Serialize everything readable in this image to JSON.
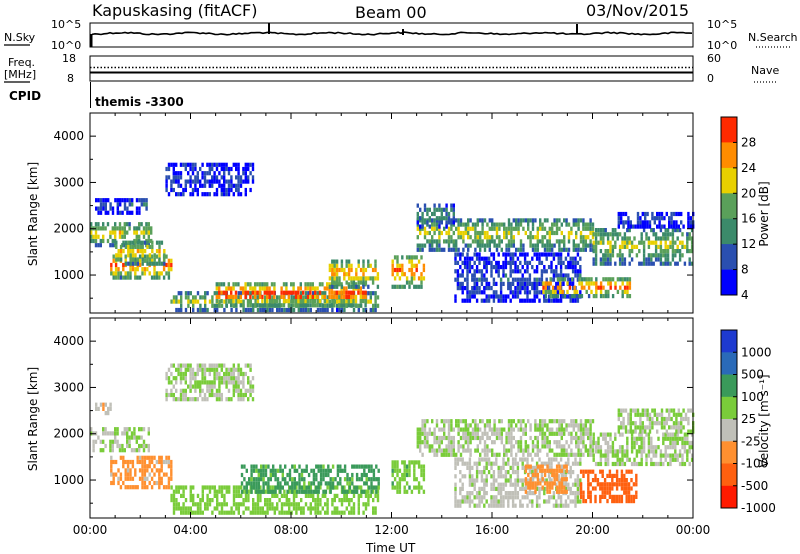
{
  "header": {
    "station": "Kapuskasing (fitACF)",
    "beam": "Beam 00",
    "date": "03/Nov/2015"
  },
  "top_panels": {
    "sky_label": "N.Sky",
    "sky_ticks": [
      "10^5",
      "10^0"
    ],
    "search_label": "N.Search",
    "search_ticks": [
      "10^5",
      "10^0"
    ],
    "freq_label": "Freq.",
    "freq_unit": "[MHz]",
    "freq_ticks": [
      "18",
      "8"
    ],
    "nave_label": "Nave",
    "nave_ticks": [
      "60",
      "0"
    ],
    "cpid_label": "CPID",
    "cpid_value": "themis -3300"
  },
  "chart_data": [
    {
      "type": "heatmap",
      "name": "power",
      "ylabel": "Slant Range [km]",
      "xlabel": "",
      "y_ticks": [
        "4000",
        "3000",
        "2000",
        "1000"
      ],
      "ylim": [
        180,
        4500
      ],
      "xlim_hours": [
        0,
        24
      ],
      "colorbar_label": "Power [dB]",
      "colorbar_ticks": [
        "28",
        "24",
        "20",
        "16",
        "12",
        "8",
        "4"
      ],
      "colorbar_range": [
        0,
        30
      ],
      "colors": [
        "#0000ff",
        "#2a4fb0",
        "#3b8a6a",
        "#5aa05a",
        "#e8d000",
        "#ff8c00",
        "#ff2a00"
      ],
      "echo_regions": [
        {
          "t0": 0.0,
          "t1": 2.4,
          "r0": 1600,
          "r1": 2100,
          "v": 18
        },
        {
          "t0": 0.2,
          "t1": 2.3,
          "r0": 2300,
          "r1": 2600,
          "v": 6
        },
        {
          "t0": 0.8,
          "t1": 3.2,
          "r0": 900,
          "r1": 1400,
          "v": 24
        },
        {
          "t0": 1.0,
          "t1": 3.0,
          "r0": 1200,
          "r1": 1700,
          "v": 20
        },
        {
          "t0": 3.0,
          "t1": 6.5,
          "r0": 2700,
          "r1": 3400,
          "v": 5
        },
        {
          "t0": 3.2,
          "t1": 11.5,
          "r0": 200,
          "r1": 600,
          "v": 16
        },
        {
          "t0": 5.0,
          "t1": 11.0,
          "r0": 300,
          "r1": 800,
          "v": 26
        },
        {
          "t0": 9.5,
          "t1": 11.5,
          "r0": 700,
          "r1": 1300,
          "v": 22
        },
        {
          "t0": 12.0,
          "t1": 13.3,
          "r0": 700,
          "r1": 1400,
          "v": 24
        },
        {
          "t0": 13.0,
          "t1": 20.0,
          "r0": 1500,
          "r1": 2200,
          "v": 17
        },
        {
          "t0": 13.0,
          "t1": 14.5,
          "r0": 2000,
          "r1": 2500,
          "v": 10
        },
        {
          "t0": 14.5,
          "t1": 19.5,
          "r0": 400,
          "r1": 1400,
          "v": 6
        },
        {
          "t0": 18.0,
          "t1": 21.5,
          "r0": 500,
          "r1": 900,
          "v": 25
        },
        {
          "t0": 20.0,
          "t1": 24.0,
          "r0": 1200,
          "r1": 2000,
          "v": 16
        },
        {
          "t0": 21.0,
          "t1": 24.0,
          "r0": 2000,
          "r1": 2300,
          "v": 5
        }
      ]
    },
    {
      "type": "heatmap",
      "name": "velocity",
      "ylabel": "Slant Range [km]",
      "xlabel": "Time UT",
      "x_ticks": [
        "00:00",
        "04:00",
        "08:00",
        "12:00",
        "16:00",
        "20:00",
        "00:00"
      ],
      "y_ticks": [
        "4000",
        "3000",
        "2000",
        "1000"
      ],
      "ylim": [
        180,
        4500
      ],
      "xlim_hours": [
        0,
        24
      ],
      "colorbar_label": "Velocity [m s⁻¹]",
      "colorbar_ticks": [
        "1000",
        "500",
        "100",
        "25",
        "-25",
        "-100",
        "-500",
        "-1000"
      ],
      "colorbar_range": [
        -1000,
        1000
      ],
      "colors": [
        "#1e3ad0",
        "#2a6ab8",
        "#3a9a5a",
        "#7acc3a",
        "#c0c0b8",
        "#ff9030",
        "#ff6010",
        "#ff1a00"
      ],
      "echo_regions": [
        {
          "t0": 0.0,
          "t1": 2.3,
          "r0": 1600,
          "r1": 2100,
          "v": 0
        },
        {
          "t0": 0.8,
          "t1": 3.2,
          "r0": 800,
          "r1": 1500,
          "v": -300
        },
        {
          "t0": 0.2,
          "t1": 0.8,
          "r0": 2400,
          "r1": 2600,
          "v": -200
        },
        {
          "t0": 3.0,
          "t1": 6.5,
          "r0": 2700,
          "r1": 3500,
          "v": 0
        },
        {
          "t0": 3.2,
          "t1": 11.5,
          "r0": 250,
          "r1": 800,
          "v": 150
        },
        {
          "t0": 6.0,
          "t1": 11.5,
          "r0": 700,
          "r1": 1300,
          "v": 300
        },
        {
          "t0": 12.0,
          "t1": 13.3,
          "r0": 700,
          "r1": 1400,
          "v": 200
        },
        {
          "t0": 13.0,
          "t1": 20.0,
          "r0": 1500,
          "r1": 2300,
          "v": 0
        },
        {
          "t0": 14.5,
          "t1": 19.5,
          "r0": 400,
          "r1": 1400,
          "v": -40
        },
        {
          "t0": 17.3,
          "t1": 19.0,
          "r0": 700,
          "r1": 1300,
          "v": -300
        },
        {
          "t0": 19.5,
          "t1": 21.7,
          "r0": 500,
          "r1": 1200,
          "v": -600
        },
        {
          "t0": 20.0,
          "t1": 24.0,
          "r0": 1300,
          "r1": 2000,
          "v": 0
        },
        {
          "t0": 21.0,
          "t1": 24.0,
          "r0": 2000,
          "r1": 2500,
          "v": 0
        }
      ]
    }
  ]
}
